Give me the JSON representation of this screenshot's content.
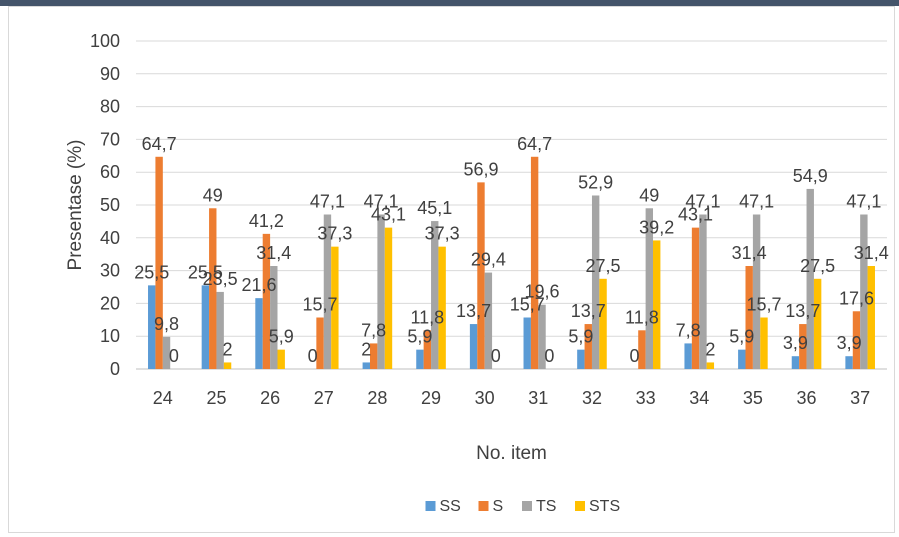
{
  "chart_data": {
    "type": "bar",
    "title": "",
    "xlabel": "No. item",
    "ylabel": "Presentase (%)",
    "ylim": [
      0,
      100
    ],
    "yticks": [
      0,
      10,
      20,
      30,
      40,
      50,
      60,
      70,
      80,
      90,
      100
    ],
    "grid": true,
    "legend_position": "bottom",
    "categories": [
      "24",
      "25",
      "26",
      "27",
      "28",
      "29",
      "30",
      "31",
      "32",
      "33",
      "34",
      "35",
      "36",
      "37"
    ],
    "series": [
      {
        "name": "SS",
        "color": "#5b9bd5",
        "values": [
          25.5,
          25.5,
          21.6,
          0,
          2,
          5.9,
          13.7,
          15.7,
          5.9,
          0,
          7.8,
          5.9,
          3.9,
          3.9
        ],
        "labels": [
          "25,5",
          "25,5",
          "21,6",
          "0",
          "2",
          "5,9",
          "13,7",
          "15,7",
          "5,9",
          "0",
          "7,8",
          "5,9",
          "3,9",
          "3,9"
        ]
      },
      {
        "name": "S",
        "color": "#ed7d31",
        "values": [
          64.7,
          49,
          41.2,
          15.7,
          7.8,
          11.8,
          56.9,
          64.7,
          13.7,
          11.8,
          43.1,
          31.4,
          13.7,
          17.6
        ],
        "labels": [
          "64,7",
          "49",
          "41,2",
          "15,7",
          "7,8",
          "11,8",
          "56,9",
          "64,7",
          "13,7",
          "11,8",
          "43,1",
          "31,4",
          "13,7",
          "17,6"
        ]
      },
      {
        "name": "TS",
        "color": "#a5a5a5",
        "values": [
          9.8,
          23.5,
          31.4,
          47.1,
          47.1,
          45.1,
          29.4,
          19.6,
          52.9,
          49,
          47.1,
          47.1,
          54.9,
          47.1
        ],
        "labels": [
          "9,8",
          "23,5",
          "31,4",
          "47,1",
          "47,1",
          "45,1",
          "29,4",
          "19,6",
          "52,9",
          "49",
          "47,1",
          "47,1",
          "54,9",
          "47,1"
        ]
      },
      {
        "name": "STS",
        "color": "#ffc000",
        "values": [
          0,
          2,
          5.9,
          37.3,
          43.1,
          37.3,
          0,
          0,
          27.5,
          39.2,
          2,
          15.7,
          27.5,
          31.4
        ],
        "labels": [
          "0",
          "2",
          "5,9",
          "37,3",
          "43,1",
          "37,3",
          "0",
          "0",
          "27,5",
          "39,2",
          "2",
          "15,7",
          "27,5",
          "31,4"
        ]
      }
    ]
  }
}
